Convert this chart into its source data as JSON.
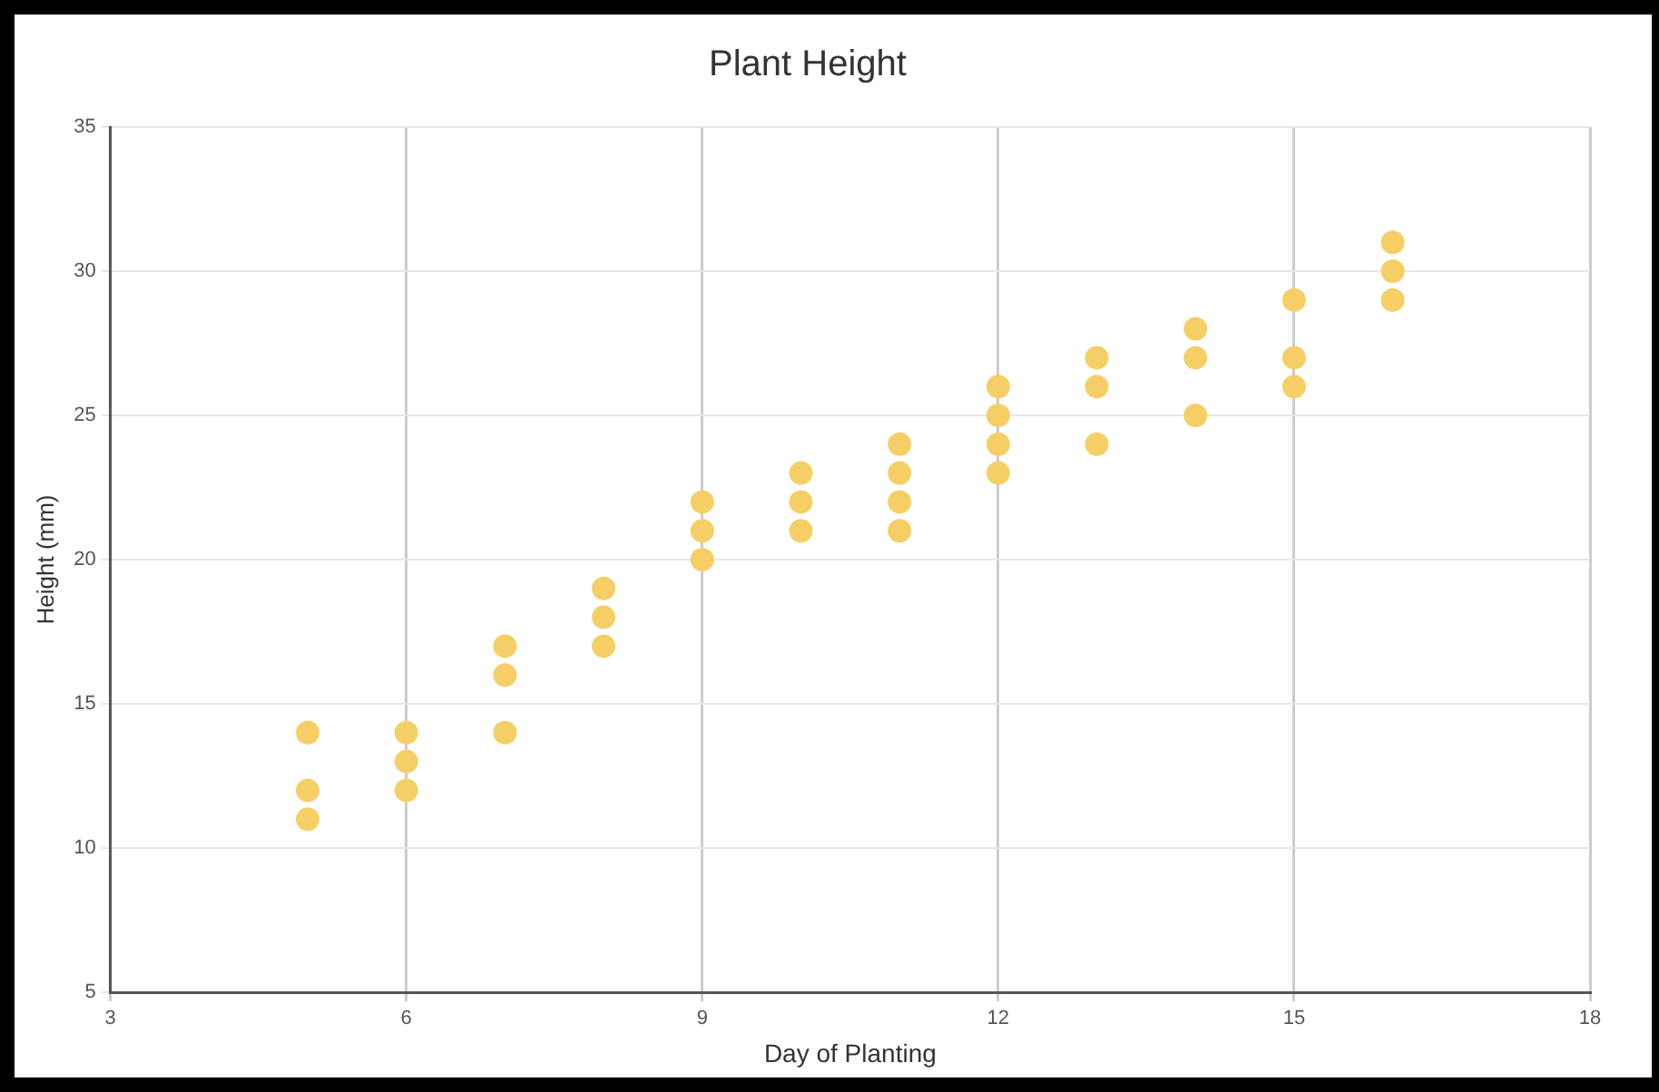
{
  "chart_data": {
    "type": "scatter",
    "title": "Plant Height",
    "xlabel": "Day of Planting",
    "ylabel": "Height (mm)",
    "x": [
      5,
      5,
      5,
      6,
      6,
      6,
      7,
      7,
      7,
      8,
      8,
      8,
      9,
      9,
      9,
      10,
      10,
      10,
      11,
      11,
      11,
      11,
      12,
      12,
      12,
      12,
      13,
      13,
      13,
      14,
      14,
      14,
      15,
      15,
      15,
      16,
      16,
      16
    ],
    "values": [
      14,
      12,
      11,
      14,
      13,
      12,
      17,
      16,
      14,
      19,
      18,
      17,
      22,
      21,
      20,
      23,
      22,
      21,
      24,
      23,
      22,
      21,
      26,
      25,
      24,
      23,
      27,
      26,
      24,
      28,
      27,
      25,
      29,
      27,
      26,
      31,
      30,
      29
    ],
    "color": "#f5cf66",
    "marker": "circle",
    "xlim": [
      3,
      18
    ],
    "xticks": [
      3,
      6,
      9,
      12,
      15,
      18
    ],
    "ylim": [
      5,
      35
    ],
    "yticks": [
      5,
      10,
      15,
      20,
      25,
      30,
      35
    ],
    "grid": true,
    "legend": false
  }
}
